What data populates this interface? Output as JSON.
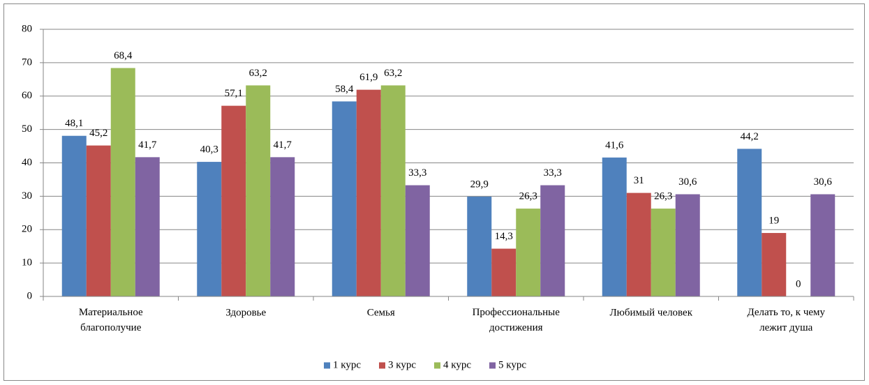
{
  "chart_data": {
    "type": "bar",
    "categories": [
      "Материальное\nблагополучие",
      "Здоровье",
      "Семья",
      "Профессиональные\nдостижения",
      "Любимый человек",
      "Делать то, к чему\nлежит душа"
    ],
    "series": [
      {
        "name": "1 курс",
        "color": "#4f81bd",
        "values": [
          48.1,
          40.3,
          58.4,
          29.9,
          41.6,
          44.2
        ],
        "value_labels": [
          "48,1",
          "40,3",
          "58,4",
          "29,9",
          "41,6",
          "44,2"
        ]
      },
      {
        "name": "3 курс",
        "color": "#c0504d",
        "values": [
          45.2,
          57.1,
          61.9,
          14.3,
          31,
          19
        ],
        "value_labels": [
          "45,2",
          "57,1",
          "61,9",
          "14,3",
          "31",
          "19"
        ]
      },
      {
        "name": "4 курс",
        "color": "#9bbb59",
        "values": [
          68.4,
          63.2,
          63.2,
          26.3,
          26.3,
          0
        ],
        "value_labels": [
          "68,4",
          "63,2",
          "63,2",
          "26,3",
          "26,3",
          "0"
        ]
      },
      {
        "name": "5 курс",
        "color": "#8064a2",
        "values": [
          41.7,
          41.7,
          33.3,
          33.3,
          30.6,
          30.6
        ],
        "value_labels": [
          "41,7",
          "41,7",
          "33,3",
          "33,3",
          "30,6",
          "30,6"
        ]
      }
    ],
    "ylim": [
      0,
      80
    ],
    "yticks": [
      0,
      10,
      20,
      30,
      40,
      50,
      60,
      70,
      80
    ],
    "grid": true,
    "legend": "bottom"
  }
}
